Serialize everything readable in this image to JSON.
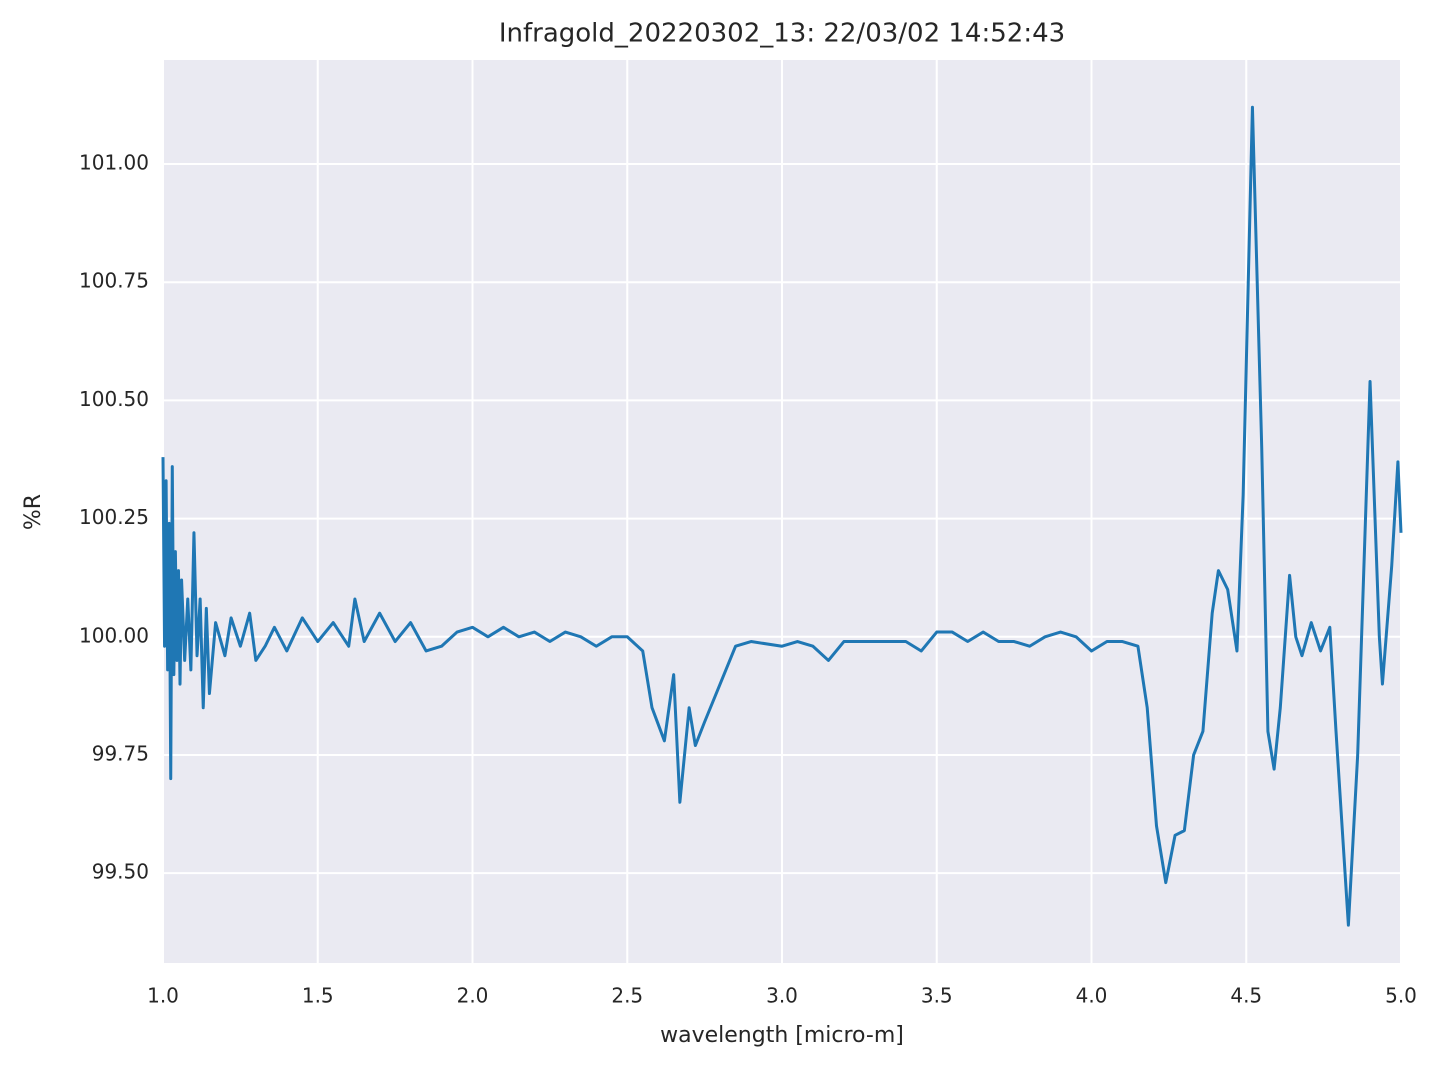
{
  "chart_data": {
    "type": "line",
    "title": "Infragold_20220302_13:  22/03/02 14:52:43",
    "xlabel": "wavelength [micro-m]",
    "ylabel": "%R",
    "xlim": [
      1.0,
      5.0
    ],
    "ylim": [
      99.31,
      101.22
    ],
    "xticks": [
      {
        "value": 1.0,
        "label": "1.0"
      },
      1.5,
      {
        "value": 2.0,
        "label": "2.0"
      },
      2.5,
      {
        "value": 3.0,
        "label": "3.0"
      },
      3.5,
      {
        "value": 4.0,
        "label": "4.0"
      },
      4.5,
      {
        "value": 5.0,
        "label": "5.0"
      }
    ],
    "yticks": [
      {
        "value": 99.5,
        "label": "99.50"
      },
      99.75,
      {
        "value": 100.0,
        "label": "100.00"
      },
      100.25,
      {
        "value": 100.5,
        "label": "100.50"
      },
      100.75,
      {
        "value": 101.0,
        "label": "101.00"
      }
    ],
    "grid": true,
    "series": [
      {
        "color": "#1f77b4",
        "x": [
          1.0,
          1.005,
          1.01,
          1.015,
          1.02,
          1.025,
          1.03,
          1.035,
          1.04,
          1.045,
          1.05,
          1.055,
          1.06,
          1.07,
          1.08,
          1.09,
          1.1,
          1.11,
          1.12,
          1.13,
          1.14,
          1.15,
          1.17,
          1.2,
          1.22,
          1.25,
          1.28,
          1.3,
          1.33,
          1.36,
          1.4,
          1.45,
          1.5,
          1.55,
          1.6,
          1.62,
          1.65,
          1.7,
          1.75,
          1.8,
          1.85,
          1.9,
          1.95,
          2.0,
          2.05,
          2.1,
          2.15,
          2.2,
          2.25,
          2.3,
          2.35,
          2.4,
          2.45,
          2.5,
          2.55,
          2.58,
          2.62,
          2.65,
          2.67,
          2.7,
          2.72,
          2.75,
          2.8,
          2.85,
          2.9,
          3.0,
          3.05,
          3.1,
          3.15,
          3.2,
          3.3,
          3.4,
          3.45,
          3.5,
          3.55,
          3.6,
          3.65,
          3.7,
          3.75,
          3.8,
          3.85,
          3.9,
          3.95,
          4.0,
          4.05,
          4.1,
          4.15,
          4.18,
          4.21,
          4.24,
          4.27,
          4.3,
          4.33,
          4.36,
          4.39,
          4.41,
          4.44,
          4.47,
          4.49,
          4.52,
          4.55,
          4.57,
          4.59,
          4.61,
          4.64,
          4.66,
          4.68,
          4.71,
          4.74,
          4.77,
          4.79,
          4.83,
          4.86,
          4.9,
          4.93,
          4.94,
          4.97,
          4.99,
          5.0
        ],
        "values": [
          100.38,
          99.98,
          100.33,
          99.93,
          100.24,
          99.7,
          100.36,
          99.92,
          100.18,
          99.95,
          100.14,
          99.9,
          100.12,
          99.95,
          100.08,
          99.93,
          100.22,
          99.96,
          100.08,
          99.85,
          100.06,
          99.88,
          100.03,
          99.96,
          100.04,
          99.98,
          100.05,
          99.95,
          99.98,
          100.02,
          99.97,
          100.04,
          99.99,
          100.03,
          99.98,
          100.08,
          99.99,
          100.05,
          99.99,
          100.03,
          99.97,
          99.98,
          100.01,
          100.02,
          100.0,
          100.02,
          100.0,
          100.01,
          99.99,
          100.01,
          100.0,
          99.98,
          100.0,
          100.0,
          99.97,
          99.85,
          99.78,
          99.92,
          99.65,
          99.85,
          99.77,
          99.82,
          99.9,
          99.98,
          99.99,
          99.98,
          99.99,
          99.98,
          99.95,
          99.99,
          99.99,
          99.99,
          99.97,
          100.01,
          100.01,
          99.99,
          100.01,
          99.99,
          99.99,
          99.98,
          100.0,
          100.01,
          100.0,
          99.97,
          99.99,
          99.99,
          99.98,
          99.85,
          99.6,
          99.48,
          99.58,
          99.59,
          99.75,
          99.8,
          100.05,
          100.14,
          100.1,
          99.97,
          100.3,
          101.12,
          100.4,
          99.8,
          99.72,
          99.85,
          100.13,
          100.0,
          99.96,
          100.03,
          99.97,
          100.02,
          99.8,
          99.39,
          99.75,
          100.54,
          100.0,
          99.9,
          100.15,
          100.37,
          100.22
        ]
      }
    ]
  }
}
